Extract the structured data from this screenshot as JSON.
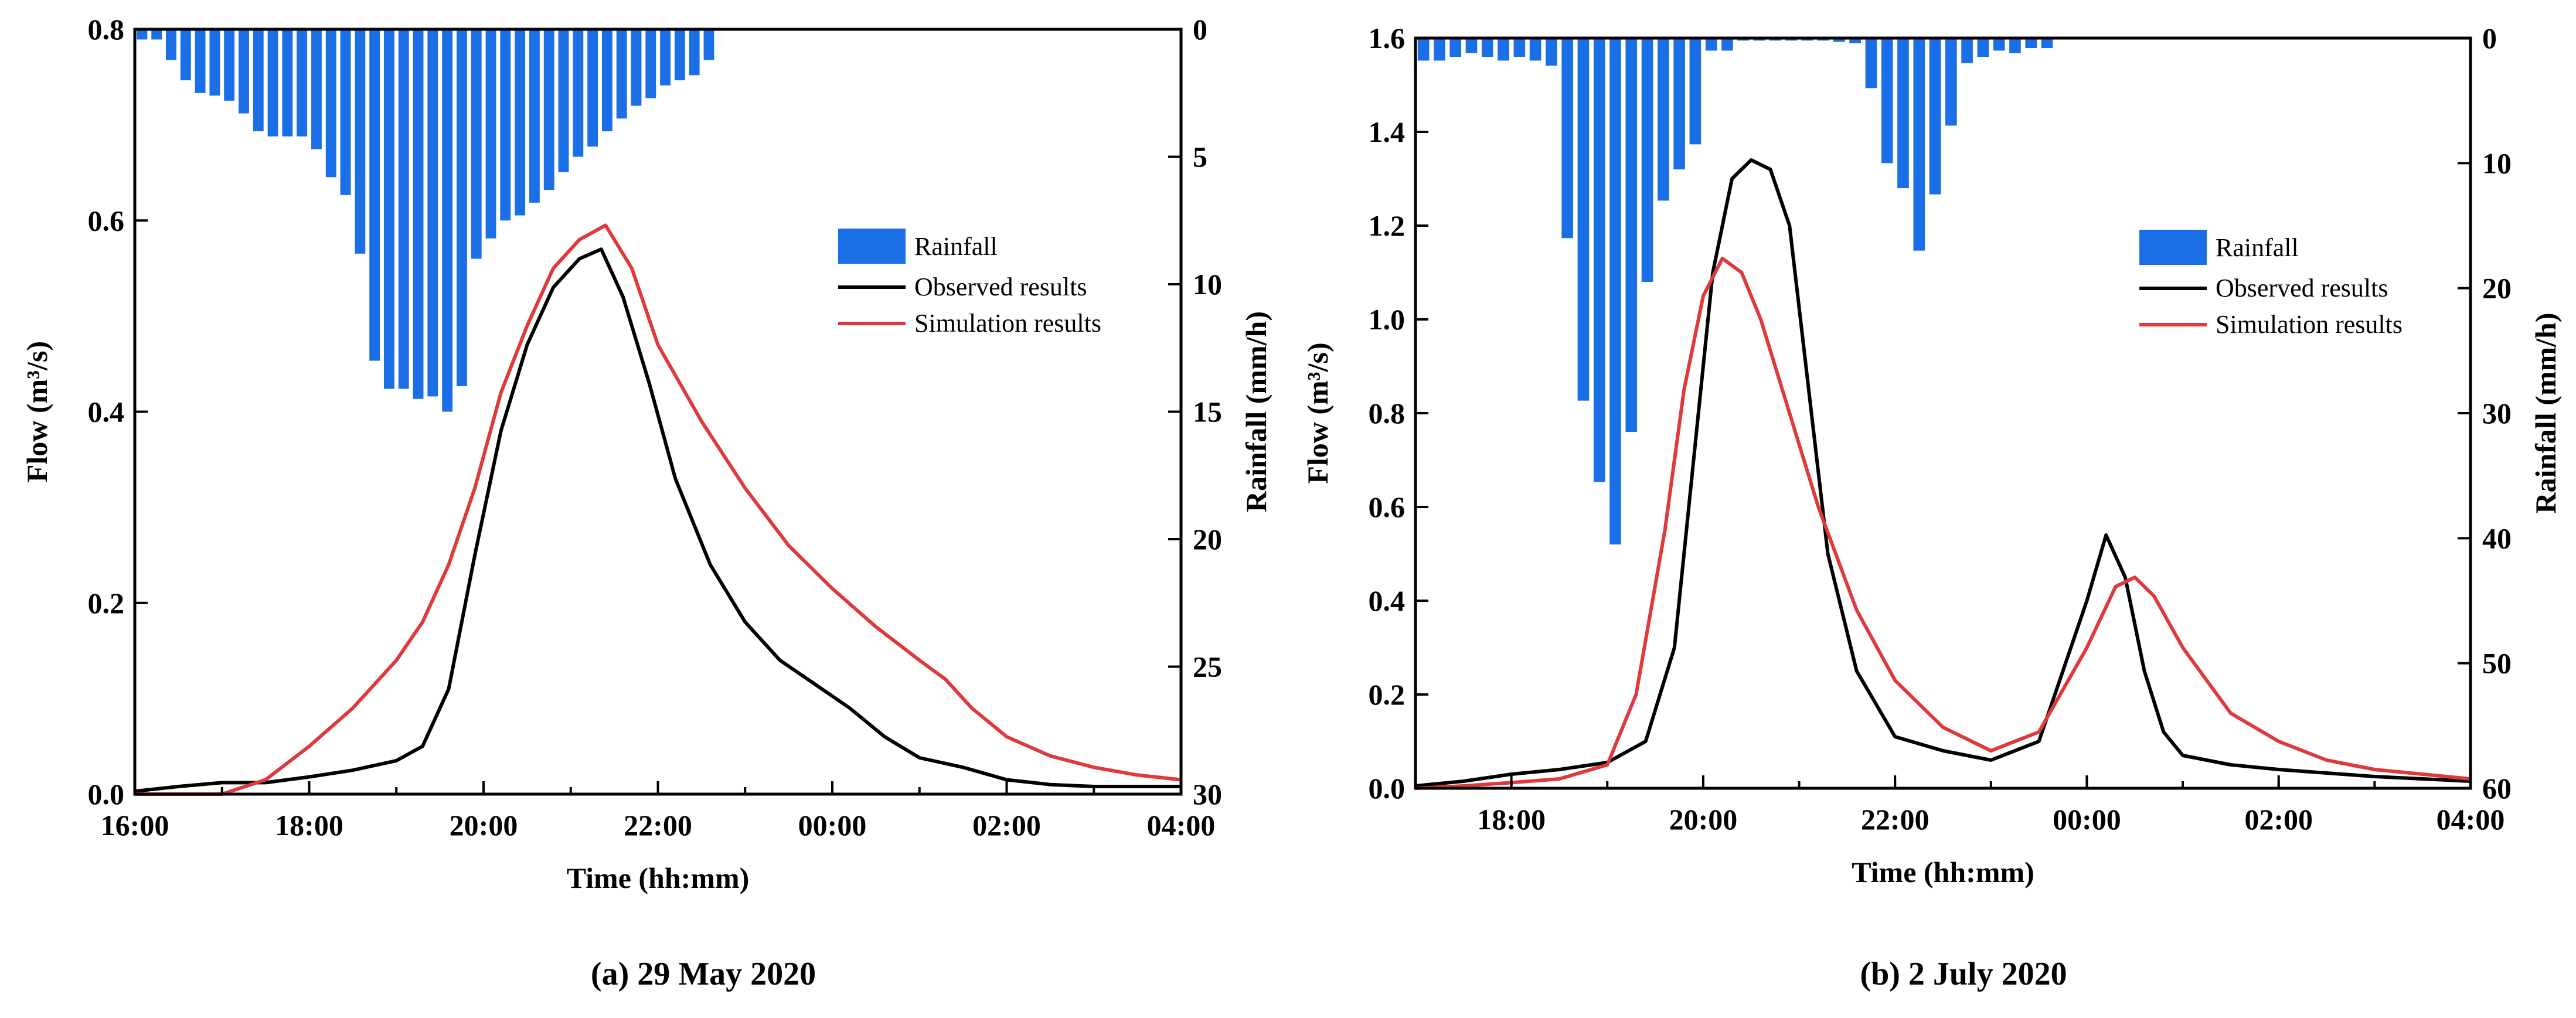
{
  "colors": {
    "rainfall": "#1a6fe6",
    "observed": "#000000",
    "simulation": "#e0393b"
  },
  "legend": {
    "rainfall": "Rainfall",
    "observed": "Observed results",
    "simulation": "Simulation results"
  },
  "chart_data": [
    {
      "type": "bar+line",
      "caption_prefix": "(a)",
      "caption": " 29 May 2020",
      "xlabel": "Time (hh:mm)",
      "ylabel_left": "Flow (m³/s)",
      "ylabel_right": "Rainfall (mm/h)",
      "xlim_hours": [
        16,
        28
      ],
      "x_ticks": [
        "16:00",
        "18:00",
        "20:00",
        "22:00",
        "00:00",
        "02:00",
        "04:00"
      ],
      "ylim_left": [
        0,
        0.8
      ],
      "yticks_left": [
        "0.0",
        "0.2",
        "0.4",
        "0.6",
        "0.8"
      ],
      "ylim_right": [
        0,
        30
      ],
      "yticks_right": [
        "0",
        "5",
        "10",
        "15",
        "20",
        "25",
        "30"
      ],
      "rainfall": {
        "start_hour": 16.0,
        "interval_hours": 0.1667,
        "values": [
          0.4,
          0.4,
          1.2,
          2.0,
          2.5,
          2.6,
          2.8,
          3.3,
          4.0,
          4.2,
          4.2,
          4.2,
          4.7,
          5.8,
          6.5,
          8.8,
          13.0,
          14.1,
          14.1,
          14.5,
          14.4,
          15.0,
          14.0,
          9.0,
          8.2,
          7.5,
          7.3,
          6.8,
          6.3,
          5.6,
          5.0,
          4.6,
          4.0,
          3.5,
          3.0,
          2.7,
          2.2,
          2.0,
          1.8,
          1.2
        ]
      },
      "series": [
        {
          "name": "Observed results",
          "x": [
            16.0,
            16.5,
            17.0,
            17.5,
            18.0,
            18.5,
            19.0,
            19.3,
            19.6,
            19.9,
            20.2,
            20.5,
            20.8,
            21.1,
            21.35,
            21.6,
            21.9,
            22.2,
            22.6,
            23.0,
            23.4,
            23.8,
            24.2,
            24.6,
            25.0,
            25.5,
            26.0,
            26.5,
            27.0,
            28.0
          ],
          "y": [
            0.003,
            0.008,
            0.012,
            0.012,
            0.018,
            0.025,
            0.035,
            0.05,
            0.11,
            0.25,
            0.38,
            0.47,
            0.53,
            0.56,
            0.57,
            0.52,
            0.43,
            0.33,
            0.24,
            0.18,
            0.14,
            0.115,
            0.09,
            0.06,
            0.038,
            0.028,
            0.015,
            0.01,
            0.008,
            0.008
          ]
        },
        {
          "name": "Simulation results",
          "x": [
            16.0,
            17.0,
            17.5,
            18.0,
            18.5,
            19.0,
            19.3,
            19.6,
            19.9,
            20.2,
            20.5,
            20.8,
            21.1,
            21.4,
            21.7,
            22.0,
            22.5,
            23.0,
            23.5,
            24.0,
            24.5,
            25.0,
            25.3,
            25.6,
            26.0,
            26.5,
            27.0,
            27.5,
            28.0
          ],
          "y": [
            0.0,
            0.0,
            0.015,
            0.05,
            0.09,
            0.14,
            0.18,
            0.24,
            0.32,
            0.42,
            0.49,
            0.55,
            0.58,
            0.595,
            0.55,
            0.47,
            0.39,
            0.32,
            0.26,
            0.215,
            0.175,
            0.14,
            0.12,
            0.09,
            0.06,
            0.04,
            0.028,
            0.02,
            0.015
          ]
        }
      ]
    },
    {
      "type": "bar+line",
      "caption_prefix": "(b)",
      "caption": " 2 July 2020",
      "xlabel": "Time (hh:mm)",
      "ylabel_left": "Flow (m³/s)",
      "ylabel_right": "Rainfall (mm/h)",
      "xlim_hours": [
        17,
        28
      ],
      "x_ticks": [
        "18:00",
        "20:00",
        "22:00",
        "00:00",
        "02:00",
        "04:00"
      ],
      "ylim_left": [
        0,
        1.6
      ],
      "yticks_left": [
        "0.0",
        "0.2",
        "0.4",
        "0.6",
        "0.8",
        "1.0",
        "1.2",
        "1.4",
        "1.6"
      ],
      "ylim_right": [
        0,
        60
      ],
      "yticks_right": [
        "0",
        "10",
        "20",
        "30",
        "40",
        "50",
        "60"
      ],
      "rainfall": {
        "start_hour": 17.0,
        "interval_hours": 0.1667,
        "values": [
          1.8,
          1.8,
          1.5,
          1.2,
          1.5,
          1.8,
          1.5,
          1.8,
          2.2,
          16.0,
          29.0,
          35.5,
          40.5,
          31.5,
          19.5,
          13.0,
          10.5,
          8.5,
          1.0,
          1.0,
          0.2,
          0.2,
          0.2,
          0.2,
          0.2,
          0.2,
          0.3,
          0.4,
          4.0,
          10.0,
          12.0,
          17.0,
          12.5,
          7.0,
          2.0,
          1.5,
          1.0,
          1.2,
          0.8,
          0.8
        ]
      },
      "series": [
        {
          "name": "Observed results",
          "x": [
            17.0,
            17.5,
            18.0,
            18.5,
            19.0,
            19.4,
            19.7,
            19.9,
            20.1,
            20.3,
            20.5,
            20.7,
            20.9,
            21.1,
            21.3,
            21.6,
            22.0,
            22.5,
            23.0,
            23.5,
            24.0,
            24.2,
            24.4,
            24.6,
            24.8,
            25.0,
            25.5,
            26.0,
            27.0,
            28.0
          ],
          "y": [
            0.005,
            0.015,
            0.03,
            0.04,
            0.055,
            0.1,
            0.3,
            0.7,
            1.1,
            1.3,
            1.34,
            1.32,
            1.2,
            0.85,
            0.5,
            0.25,
            0.11,
            0.08,
            0.06,
            0.1,
            0.4,
            0.54,
            0.45,
            0.25,
            0.12,
            0.07,
            0.05,
            0.04,
            0.025,
            0.015
          ]
        },
        {
          "name": "Simulation results",
          "x": [
            17.0,
            17.5,
            18.0,
            18.5,
            19.0,
            19.3,
            19.6,
            19.8,
            20.0,
            20.2,
            20.4,
            20.6,
            20.9,
            21.2,
            21.6,
            22.0,
            22.5,
            23.0,
            23.5,
            24.0,
            24.3,
            24.5,
            24.7,
            25.0,
            25.5,
            26.0,
            26.5,
            27.0,
            27.5,
            28.0
          ],
          "y": [
            0.0,
            0.005,
            0.012,
            0.02,
            0.05,
            0.2,
            0.55,
            0.85,
            1.05,
            1.13,
            1.1,
            1.0,
            0.8,
            0.6,
            0.38,
            0.23,
            0.13,
            0.08,
            0.12,
            0.3,
            0.43,
            0.45,
            0.41,
            0.3,
            0.16,
            0.1,
            0.06,
            0.04,
            0.03,
            0.02
          ]
        }
      ]
    }
  ]
}
